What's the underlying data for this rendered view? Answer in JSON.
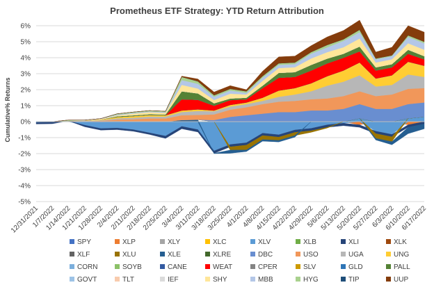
{
  "chart_data": {
    "type": "area",
    "stacked": true,
    "title": "Prometheus ETF Strategy: YTD Return Attribution",
    "ylabel": "Cumulative% Returns",
    "xlabel": "",
    "ylim": [
      -0.05,
      0.06
    ],
    "yticks": [
      -0.05,
      -0.04,
      -0.03,
      -0.02,
      -0.01,
      0,
      0.01,
      0.02,
      0.03,
      0.04,
      0.05,
      0.06
    ],
    "ytick_labels": [
      "-5%",
      "-4%",
      "-3%",
      "-2%",
      "-1%",
      "0%",
      "1%",
      "2%",
      "3%",
      "4%",
      "5%",
      "6%"
    ],
    "grid": true,
    "legend_position": "bottom",
    "x": [
      "12/31/2021",
      "1/7/2022",
      "1/14/2022",
      "1/21/2022",
      "1/28/2022",
      "2/4/2022",
      "2/11/2022",
      "2/18/2022",
      "2/25/2022",
      "3/4/2022",
      "3/11/2022",
      "3/18/2022",
      "3/25/2022",
      "4/1/2022",
      "4/8/2022",
      "4/15/2022",
      "4/22/2022",
      "4/29/2022",
      "5/6/2022",
      "5/13/2022",
      "5/20/2022",
      "5/27/2022",
      "6/3/2022",
      "6/10/2022",
      "6/17/2022"
    ],
    "series": [
      {
        "name": "SPY",
        "color": "#4472C4",
        "values": [
          0,
          0,
          0,
          0,
          0,
          0,
          0,
          0,
          0,
          0,
          0,
          -0.0003,
          -0.0003,
          -0.0002,
          -0.0002,
          -0.0002,
          -0.0002,
          -0.0002,
          0,
          0,
          0,
          0,
          0,
          0,
          0
        ]
      },
      {
        "name": "XLP",
        "color": "#ED7D31",
        "values": [
          0,
          0,
          0,
          -0.0002,
          -0.0003,
          0.0003,
          0,
          0,
          0,
          0,
          0,
          0,
          0,
          0,
          0,
          0,
          0,
          0,
          0,
          0,
          -0.002,
          0,
          0,
          -0.002,
          0
        ]
      },
      {
        "name": "XLY",
        "color": "#A5A5A5",
        "values": [
          0,
          0,
          0,
          0,
          0,
          0,
          0,
          0,
          0,
          0,
          0,
          0,
          0,
          0,
          0,
          0,
          0,
          0,
          0,
          0,
          0,
          0,
          0,
          0,
          0
        ]
      },
      {
        "name": "XLC",
        "color": "#FFC000",
        "values": [
          0,
          0,
          0,
          0,
          0,
          0,
          0,
          0,
          0,
          0,
          0,
          0,
          0,
          0,
          0,
          0,
          0,
          0,
          0,
          0,
          0,
          0,
          0,
          0,
          0
        ]
      },
      {
        "name": "XLV",
        "color": "#5B9BD5",
        "values": [
          -0.0005,
          -0.0003,
          0.0005,
          -0.002,
          -0.004,
          -0.004,
          -0.005,
          -0.007,
          -0.009,
          -0.003,
          -0.005,
          -0.018,
          -0.014,
          -0.013,
          -0.007,
          -0.008,
          -0.005,
          -0.004,
          -0.002,
          -0.001,
          0.002,
          -0.006,
          -0.008,
          0.002,
          0.003
        ]
      },
      {
        "name": "XLB",
        "color": "#70AD47",
        "values": [
          0,
          0,
          0,
          0,
          0,
          0,
          0,
          0,
          0,
          0,
          0,
          0,
          0,
          0,
          0,
          0,
          0,
          0,
          0,
          0,
          0,
          0,
          0,
          0,
          0
        ]
      },
      {
        "name": "XLI",
        "color": "#264478",
        "values": [
          -0.001,
          -0.001,
          0,
          -0.001,
          -0.001,
          -0.001,
          -0.001,
          -0.001,
          -0.0015,
          -0.0015,
          -0.0015,
          -0.0015,
          -0.0015,
          -0.0015,
          -0.0015,
          -0.0015,
          -0.0015,
          -0.0015,
          -0.0015,
          -0.0015,
          -0.0015,
          -0.0015,
          -0.0015,
          -0.0015,
          -0.0015
        ]
      },
      {
        "name": "XLK",
        "color": "#9E480E",
        "values": [
          0,
          0,
          0,
          0,
          0,
          0,
          0,
          0,
          0,
          0,
          0,
          0,
          0,
          0,
          0,
          0,
          0,
          0,
          0,
          0,
          0,
          0,
          0,
          0,
          0
        ]
      },
      {
        "name": "XLF",
        "color": "#636363",
        "values": [
          0,
          0,
          0,
          0,
          0,
          0,
          0,
          0,
          0,
          0,
          0,
          0,
          0,
          0,
          0,
          0,
          0,
          0,
          0,
          0,
          0,
          0,
          0,
          0,
          0
        ]
      },
      {
        "name": "XLU",
        "color": "#997300",
        "values": [
          0,
          0,
          0,
          0,
          0,
          0,
          0,
          0,
          0,
          0,
          0,
          0,
          -0.002,
          -0.003,
          -0.0025,
          -0.002,
          -0.002,
          -0.001,
          -0.0005,
          0,
          0,
          -0.003,
          -0.003,
          0,
          0
        ]
      },
      {
        "name": "XLE",
        "color": "#255E91",
        "values": [
          0,
          0,
          0,
          0,
          0,
          0,
          0,
          0,
          0,
          0.001,
          0.0012,
          -0.0002,
          -0.002,
          -0.001,
          -0.001,
          -0.001,
          -0.001,
          0,
          0,
          0,
          0,
          -0.001,
          -0.002,
          -0.004,
          -0.003
        ]
      },
      {
        "name": "XLRE",
        "color": "#43682B",
        "values": [
          0,
          0,
          0,
          0,
          0,
          0,
          0,
          0,
          0,
          0,
          0,
          0,
          0,
          0,
          0,
          0,
          0,
          0,
          0,
          0,
          0,
          0,
          0,
          0,
          0
        ]
      },
      {
        "name": "DBC",
        "color": "#698ED0",
        "values": [
          0,
          0,
          0,
          0,
          0,
          0,
          0,
          0,
          0,
          0,
          0,
          0.001,
          0.003,
          0.004,
          0.005,
          0.006,
          0.006,
          0.007,
          0.007,
          0.008,
          0.009,
          0.008,
          0.008,
          0.009,
          0.009
        ]
      },
      {
        "name": "USO",
        "color": "#F1975A",
        "values": [
          0,
          0,
          0,
          0.0003,
          0.0005,
          0.001,
          0.0015,
          0.002,
          0.002,
          0.003,
          0.003,
          0.0035,
          0.0045,
          0.005,
          0.006,
          0.0065,
          0.007,
          0.007,
          0.0075,
          0.008,
          0.008,
          0.008,
          0.009,
          0.0095,
          0.009
        ]
      },
      {
        "name": "UGA",
        "color": "#B7B7B7",
        "values": [
          0,
          0,
          0,
          0.0002,
          0.0004,
          0.0008,
          0.001,
          0.0012,
          0.0012,
          0.002,
          0.0025,
          0.002,
          0.002,
          0.002,
          0.002,
          0.003,
          0.004,
          0.005,
          0.008,
          0.009,
          0.01,
          0.006,
          0.006,
          0.009,
          0.007
        ]
      },
      {
        "name": "UNG",
        "color": "#FFCD33",
        "values": [
          0,
          0,
          0,
          0.0002,
          0.0005,
          0.0008,
          0.001,
          0.001,
          0.0008,
          0.001,
          0.001,
          0.0005,
          0.001,
          0.001,
          0.002,
          0.004,
          0.004,
          0.005,
          0.006,
          0.007,
          0.008,
          0.005,
          0.006,
          0.008,
          0.007
        ]
      },
      {
        "name": "CORN",
        "color": "#7CAFDD",
        "values": [
          0,
          0,
          0,
          0,
          0,
          0,
          0,
          0,
          0,
          0,
          0,
          0,
          0,
          0,
          0,
          0,
          0,
          0,
          0,
          0,
          0,
          0,
          0,
          0,
          0
        ]
      },
      {
        "name": "SOYB",
        "color": "#8CC168",
        "values": [
          0,
          0,
          0,
          0,
          0,
          0,
          0,
          0,
          0,
          0,
          0,
          0,
          0,
          0,
          0,
          0,
          0,
          0,
          0,
          0,
          0,
          0,
          0,
          0,
          0
        ]
      },
      {
        "name": "CANE",
        "color": "#335AA1",
        "values": [
          0,
          0,
          0,
          0,
          0,
          0,
          0,
          0,
          0,
          0,
          0,
          0,
          0,
          0,
          0,
          0,
          0,
          0,
          0,
          0,
          0,
          0,
          0,
          0,
          0
        ]
      },
      {
        "name": "WEAT",
        "color": "#FF0000",
        "values": [
          0,
          0,
          0,
          0,
          0,
          0,
          0,
          0,
          0,
          0.007,
          0.006,
          0.003,
          0.003,
          0.002,
          0.006,
          0.008,
          0.007,
          0.008,
          0.008,
          0.008,
          0.007,
          0.005,
          0.005,
          0.005,
          0.004
        ]
      },
      {
        "name": "CPER",
        "color": "#848484",
        "values": [
          0,
          0,
          0,
          0,
          0,
          0,
          0,
          0,
          0,
          0,
          0,
          0,
          0,
          0,
          0,
          0,
          0,
          0,
          0,
          0,
          0,
          0,
          0,
          0,
          0
        ]
      },
      {
        "name": "SLV",
        "color": "#CC9A00",
        "values": [
          0,
          0,
          0,
          0,
          0,
          0,
          0,
          0,
          0,
          0,
          0,
          0,
          0,
          0,
          0,
          0,
          0,
          0,
          0,
          0,
          0,
          0,
          0,
          0,
          0
        ]
      },
      {
        "name": "GLD",
        "color": "#2E75B6",
        "values": [
          0,
          0,
          0,
          0,
          0,
          0,
          0,
          0,
          0,
          0,
          0,
          0,
          0,
          0,
          0,
          0,
          0,
          0,
          0,
          0,
          0,
          0,
          0,
          0,
          0
        ]
      },
      {
        "name": "PALL",
        "color": "#548235",
        "values": [
          0,
          0,
          0,
          0,
          0,
          0.0005,
          0.0005,
          0.0005,
          0.0005,
          0.005,
          0.004,
          0.0015,
          0.001,
          0.001,
          0.0015,
          0.003,
          0.003,
          0.0035,
          0.003,
          0.0025,
          0.003,
          0.002,
          0.002,
          0.0025,
          0.002
        ]
      },
      {
        "name": "GOVT",
        "color": "#9DC3E6",
        "values": [
          0,
          0,
          0,
          0,
          0,
          0,
          0,
          0,
          0,
          0,
          0,
          0,
          0,
          0,
          0,
          0,
          0,
          0,
          0,
          0,
          0,
          0,
          0,
          0,
          0
        ]
      },
      {
        "name": "TLT",
        "color": "#F8CBAD",
        "values": [
          0,
          0,
          0,
          0,
          0,
          0,
          0,
          0,
          0,
          0,
          0,
          0,
          0,
          0,
          0,
          0,
          0,
          0,
          0,
          0,
          0,
          0,
          0,
          0,
          0
        ]
      },
      {
        "name": "IEF",
        "color": "#DBDBDB",
        "values": [
          0,
          0,
          0,
          0,
          0,
          0,
          0,
          0,
          0,
          0,
          0,
          0,
          0,
          0,
          0,
          0,
          0,
          0,
          0,
          0,
          0,
          0,
          0,
          0,
          0
        ]
      },
      {
        "name": "SHY",
        "color": "#FFE699",
        "values": [
          0,
          0,
          0,
          0.0002,
          0.0003,
          0.0005,
          0.001,
          0.0012,
          0.001,
          0.004,
          0.003,
          0.002,
          0.003,
          0.002,
          0.003,
          0.003,
          0.003,
          0.004,
          0.004,
          0.004,
          0.005,
          0.003,
          0.003,
          0.004,
          0.004
        ]
      },
      {
        "name": "MBB",
        "color": "#B4C7E7",
        "values": [
          0,
          0,
          0,
          0.0001,
          0.0002,
          0.0005,
          0.0005,
          0.0005,
          0.0005,
          0.003,
          0.003,
          0.002,
          0.002,
          0.001,
          0.002,
          0.002,
          0.002,
          0.003,
          0.003,
          0.004,
          0.004,
          0.002,
          0.002,
          0.004,
          0.004
        ]
      },
      {
        "name": "HYG",
        "color": "#A9D18E",
        "values": [
          0,
          0,
          0.0005,
          0,
          0,
          0.0005,
          0.0005,
          0.0005,
          0.0005,
          0.002,
          0.0015,
          0.001,
          0.001,
          0.001,
          0.001,
          0.001,
          0.001,
          0.001,
          0.0015,
          0.001,
          0.0015,
          0.0005,
          0.0005,
          0.001,
          0.001
        ]
      },
      {
        "name": "TIP",
        "color": "#1F4E79",
        "values": [
          0,
          0,
          0,
          0,
          0,
          0,
          0,
          0,
          0,
          0,
          0,
          0,
          0,
          0,
          0,
          0,
          0,
          0,
          0,
          0,
          0,
          0,
          0,
          0,
          0
        ]
      },
      {
        "name": "UUP",
        "color": "#843C0C",
        "values": [
          0,
          0,
          0,
          0,
          0,
          0,
          0,
          0,
          0,
          0.0005,
          0.0015,
          0.002,
          0.002,
          0.001,
          0.003,
          0.004,
          0.004,
          0.004,
          0.005,
          0.0055,
          0.006,
          0.004,
          0.005,
          0.006,
          0.006
        ]
      }
    ]
  }
}
